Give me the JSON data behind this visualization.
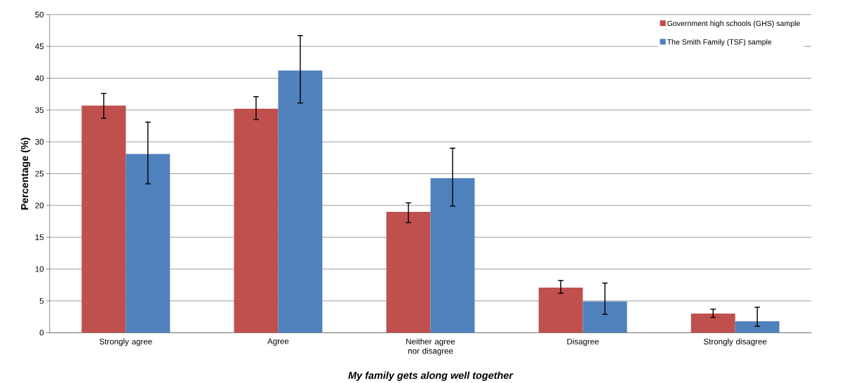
{
  "chart_data": {
    "type": "bar",
    "xlabel": "My family gets along well together",
    "ylabel": "Percentage (%)",
    "categories": [
      "Strongly agree",
      "Agree",
      "Neither agree nor disagree",
      "Disagree",
      "Strongly disagree"
    ],
    "series": [
      {
        "name": "Government high schools (GHS) sample",
        "color": "#c0504d",
        "values": [
          35.7,
          35.2,
          19.0,
          7.1,
          3.0
        ],
        "errors": [
          [
            33.7,
            37.6
          ],
          [
            33.5,
            37.1
          ],
          [
            17.3,
            20.4
          ],
          [
            6.2,
            8.2
          ],
          [
            2.4,
            3.7
          ]
        ]
      },
      {
        "name": "The Smith Family (TSF) sample",
        "color": "#4f81bd",
        "values": [
          28.1,
          41.2,
          24.3,
          4.9,
          1.8
        ],
        "errors": [
          [
            23.4,
            33.1
          ],
          [
            36.1,
            46.7
          ],
          [
            19.9,
            29.0
          ],
          [
            2.9,
            7.8
          ],
          [
            1.0,
            4.0
          ]
        ]
      }
    ],
    "ylim": [
      0,
      50
    ],
    "yticks": [
      0,
      5,
      10,
      15,
      20,
      25,
      30,
      35,
      40,
      45,
      50
    ],
    "grid": "y",
    "legend": "top right"
  }
}
